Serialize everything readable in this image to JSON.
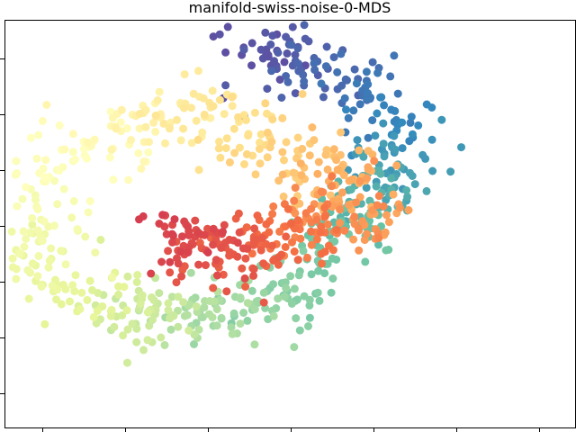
{
  "chart_data": {
    "type": "scatter",
    "title": "manifold-swiss-noise-0-MDS",
    "xlabel": "",
    "ylabel": "",
    "xlim": [
      0,
      100
    ],
    "ylim": [
      0,
      100
    ],
    "grid": false,
    "colormap": "Spectral",
    "colormap_stops": [
      "#9e0142",
      "#d53e4f",
      "#f46d43",
      "#fdae61",
      "#fee08b",
      "#ffffbf",
      "#e6f598",
      "#abdda4",
      "#66c2a5",
      "#3288bd",
      "#5e4fa2"
    ],
    "points": [
      {
        "x": 43.0,
        "y": 91.0,
        "t": 1.0
      },
      {
        "x": 46.1,
        "y": 92.8,
        "t": 0.99
      },
      {
        "x": 49.9,
        "y": 91.9,
        "t": 0.98
      },
      {
        "x": 53.9,
        "y": 88.7,
        "t": 0.96
      },
      {
        "x": 57.9,
        "y": 86.5,
        "t": 0.95
      },
      {
        "x": 62.0,
        "y": 85.0,
        "t": 0.93
      },
      {
        "x": 65.6,
        "y": 79.9,
        "t": 0.92
      },
      {
        "x": 68.1,
        "y": 75.3,
        "t": 0.9
      },
      {
        "x": 69.0,
        "y": 71.0,
        "t": 0.88
      },
      {
        "x": 68.5,
        "y": 65.5,
        "t": 0.87
      },
      {
        "x": 66.6,
        "y": 60.5,
        "t": 0.85
      },
      {
        "x": 64.1,
        "y": 55.7,
        "t": 0.83
      },
      {
        "x": 62.5,
        "y": 52.1,
        "t": 0.82
      },
      {
        "x": 60.0,
        "y": 49.0,
        "t": 0.8
      },
      {
        "x": 57.0,
        "y": 44.2,
        "t": 0.78
      },
      {
        "x": 52.9,
        "y": 38.1,
        "t": 0.77
      },
      {
        "x": 48.0,
        "y": 33.0,
        "t": 0.75
      },
      {
        "x": 43.9,
        "y": 31.7,
        "t": 0.73
      },
      {
        "x": 40.1,
        "y": 30.1,
        "t": 0.71
      },
      {
        "x": 36.0,
        "y": 28.9,
        "t": 0.7
      },
      {
        "x": 32.1,
        "y": 28.0,
        "t": 0.68
      },
      {
        "x": 28.0,
        "y": 27.5,
        "t": 0.66
      },
      {
        "x": 24.0,
        "y": 27.2,
        "t": 0.64
      },
      {
        "x": 20.0,
        "y": 28.7,
        "t": 0.63
      },
      {
        "x": 16.1,
        "y": 31.0,
        "t": 0.61
      },
      {
        "x": 12.0,
        "y": 33.6,
        "t": 0.59
      },
      {
        "x": 8.1,
        "y": 38.0,
        "t": 0.57
      },
      {
        "x": 6.0,
        "y": 45.0,
        "t": 0.55
      },
      {
        "x": 6.1,
        "y": 53.0,
        "t": 0.54
      },
      {
        "x": 7.9,
        "y": 60.0,
        "t": 0.52
      },
      {
        "x": 12.0,
        "y": 66.1,
        "t": 0.5
      },
      {
        "x": 18.0,
        "y": 72.0,
        "t": 0.48
      },
      {
        "x": 24.0,
        "y": 75.8,
        "t": 0.46
      },
      {
        "x": 30.0,
        "y": 78.0,
        "t": 0.44
      },
      {
        "x": 36.0,
        "y": 77.1,
        "t": 0.42
      },
      {
        "x": 41.9,
        "y": 74.0,
        "t": 0.4
      },
      {
        "x": 46.0,
        "y": 70.0,
        "t": 0.38
      },
      {
        "x": 50.0,
        "y": 67.0,
        "t": 0.36
      },
      {
        "x": 54.1,
        "y": 65.0,
        "t": 0.34
      },
      {
        "x": 58.0,
        "y": 62.1,
        "t": 0.32
      },
      {
        "x": 61.0,
        "y": 59.0,
        "t": 0.3
      },
      {
        "x": 63.0,
        "y": 55.0,
        "t": 0.28
      },
      {
        "x": 60.1,
        "y": 52.0,
        "t": 0.26
      },
      {
        "x": 56.0,
        "y": 51.1,
        "t": 0.24
      },
      {
        "x": 52.0,
        "y": 49.0,
        "t": 0.22
      },
      {
        "x": 48.0,
        "y": 46.0,
        "t": 0.2
      },
      {
        "x": 44.1,
        "y": 44.0,
        "t": 0.18
      },
      {
        "x": 40.0,
        "y": 43.0,
        "t": 0.16
      },
      {
        "x": 36.0,
        "y": 44.1,
        "t": 0.14
      },
      {
        "x": 32.0,
        "y": 46.0,
        "t": 0.12
      },
      {
        "x": 28.0,
        "y": 48.1,
        "t": 0.1
      }
    ],
    "n_points_estimate": 1000
  }
}
